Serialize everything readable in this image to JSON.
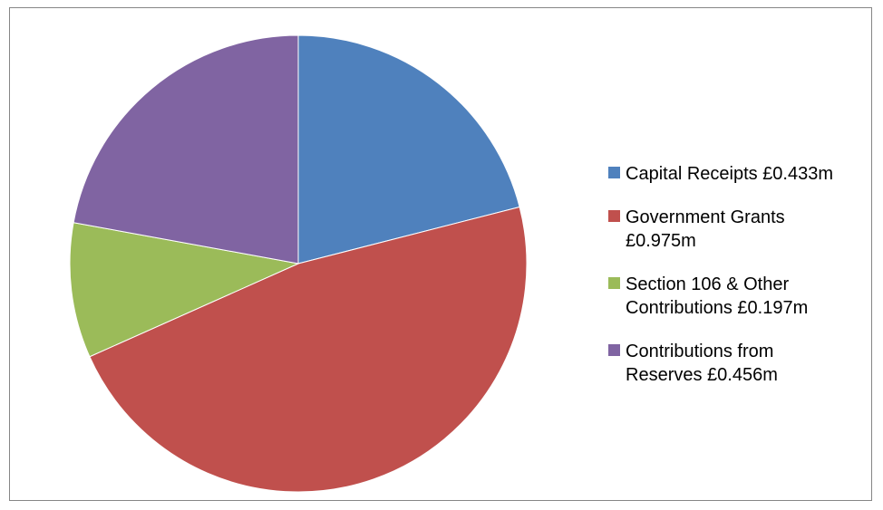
{
  "chart_data": {
    "type": "pie",
    "title": "",
    "slices": [
      {
        "label": "Capital Receipts £0.433m",
        "value": 0.433,
        "color": "#4F81BD"
      },
      {
        "label": "Government Grants £0.975m",
        "value": 0.975,
        "color": "#C0504D"
      },
      {
        "label": "Section 106 & Other Contributions £0.197m",
        "value": 0.197,
        "color": "#9BBB59"
      },
      {
        "label": "Contributions from Reserves £0.456m",
        "value": 0.456,
        "color": "#8064A2"
      }
    ],
    "legend": "right"
  }
}
